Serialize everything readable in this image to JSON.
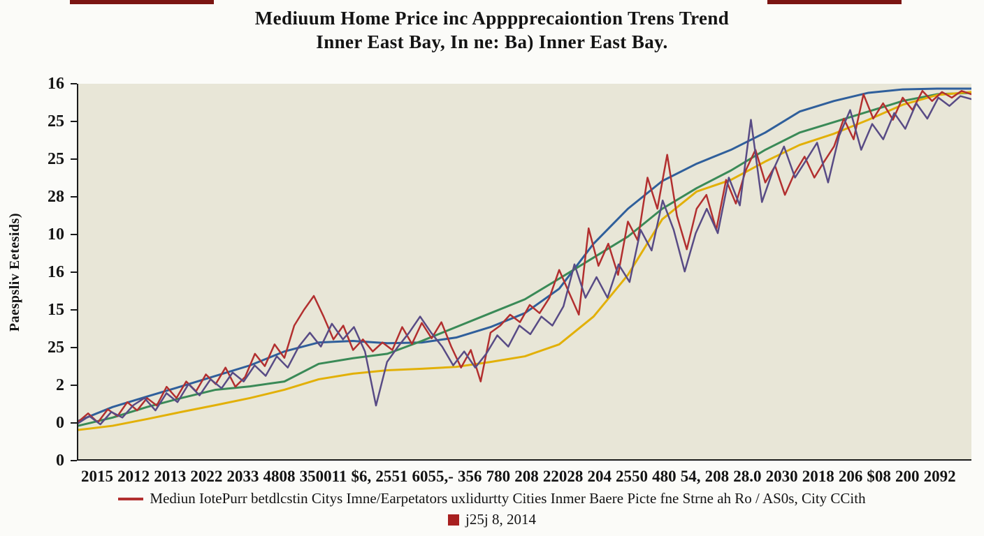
{
  "header": {
    "title_line1": "Mediuum Home Price inc Apppprecaiontion Trens Trend",
    "title_line2": "Inner East Bay, In ne: Ba) Inner East Bay."
  },
  "chart_data": {
    "type": "line",
    "title": "Mediuum Home Price inc Apppprecaiontion Trens Trend",
    "subtitle": "Inner East Bay, In ne: Ba) Inner East Bay.",
    "xlabel": "",
    "ylabel": "Paespsliv Eetesids)",
    "plot_background": "#e8e6d7",
    "grid": false,
    "legend_position": "bottom",
    "ylim": [
      0,
      10
    ],
    "y_tick_labels": [
      "16",
      "25",
      "25",
      "28",
      "10",
      "16",
      "15",
      "25",
      "2",
      "0",
      "0"
    ],
    "x_tick_labels": [
      "2015",
      "2012",
      "2013",
      "2022",
      "2033",
      "4808",
      "350011",
      "$6,",
      "2551",
      "6055,-",
      "356",
      "780",
      "208",
      "22028",
      "204",
      "2550",
      "480",
      "54,",
      "208",
      "28.0",
      "2030",
      "2018",
      "206",
      "$08",
      "200",
      "2092"
    ],
    "series": [
      {
        "name": "blue-smooth",
        "color": "#2f5f9b",
        "stroke_width": 3,
        "values": [
          1.02,
          1.39,
          1.67,
          1.94,
          2.22,
          2.5,
          2.87,
          3.11,
          3.15,
          3.09,
          3.11,
          3.24,
          3.52,
          3.89,
          4.54,
          5.74,
          6.67,
          7.41,
          7.87,
          8.24,
          8.7,
          9.26,
          9.54,
          9.76,
          9.85,
          9.87,
          9.87
        ]
      },
      {
        "name": "green-smooth",
        "color": "#3a8a57",
        "stroke_width": 3,
        "values": [
          0.89,
          1.11,
          1.39,
          1.63,
          1.85,
          1.94,
          2.07,
          2.54,
          2.69,
          2.81,
          3.15,
          3.52,
          3.89,
          4.26,
          4.81,
          5.37,
          5.93,
          6.67,
          7.22,
          7.69,
          8.24,
          8.7,
          8.98,
          9.26,
          9.54,
          9.72,
          9.76
        ]
      },
      {
        "name": "gold-smooth",
        "color": "#e2b007",
        "stroke_width": 3,
        "values": [
          0.78,
          0.89,
          1.07,
          1.26,
          1.44,
          1.63,
          1.85,
          2.13,
          2.28,
          2.37,
          2.41,
          2.46,
          2.59,
          2.74,
          3.06,
          3.8,
          4.91,
          6.39,
          7.13,
          7.44,
          7.93,
          8.37,
          8.67,
          9.04,
          9.44,
          9.7,
          9.78
        ]
      },
      {
        "name": "red-volatile",
        "color": "#b22f2f",
        "stroke_width": 2.5,
        "values": [
          1.0,
          1.22,
          0.98,
          1.33,
          1.15,
          1.52,
          1.3,
          1.63,
          1.43,
          1.93,
          1.63,
          2.07,
          1.81,
          2.26,
          2.0,
          2.44,
          1.93,
          2.19,
          2.81,
          2.48,
          3.06,
          2.7,
          3.56,
          3.98,
          4.35,
          3.8,
          3.19,
          3.56,
          2.91,
          3.19,
          2.87,
          3.11,
          2.91,
          3.52,
          3.07,
          3.63,
          3.22,
          3.65,
          3.0,
          2.44,
          2.91,
          2.07,
          3.37,
          3.56,
          3.85,
          3.65,
          4.11,
          3.89,
          4.3,
          5.04,
          4.44,
          3.85,
          6.15,
          5.15,
          5.74,
          4.91,
          6.33,
          5.83,
          7.5,
          6.67,
          8.11,
          6.48,
          5.59,
          6.67,
          7.04,
          6.11,
          7.44,
          6.81,
          7.69,
          8.24,
          7.37,
          7.81,
          7.04,
          7.63,
          8.06,
          7.5,
          7.93,
          8.33,
          9.07,
          8.52,
          9.72,
          9.07,
          9.48,
          9.04,
          9.63,
          9.3,
          9.81,
          9.54,
          9.78,
          9.63,
          9.81,
          9.72
        ]
      },
      {
        "name": "purple-volatile",
        "color": "#584b85",
        "stroke_width": 2.5,
        "values": [
          0.96,
          1.15,
          0.93,
          1.26,
          1.11,
          1.44,
          1.63,
          1.3,
          1.76,
          1.52,
          2.0,
          1.7,
          2.13,
          1.89,
          2.31,
          2.07,
          2.5,
          2.22,
          2.74,
          2.44,
          3.0,
          3.37,
          3.0,
          3.61,
          3.19,
          3.52,
          2.87,
          1.43,
          2.59,
          3.0,
          3.37,
          3.8,
          3.37,
          3.0,
          2.5,
          2.87,
          2.44,
          2.81,
          3.3,
          3.0,
          3.56,
          3.33,
          3.8,
          3.56,
          4.07,
          5.19,
          4.3,
          4.85,
          4.3,
          5.19,
          4.72,
          6.11,
          5.56,
          6.89,
          6.11,
          5.0,
          6.02,
          6.67,
          6.02,
          7.5,
          6.76,
          9.04,
          6.85,
          7.69,
          8.33,
          7.5,
          7.96,
          8.43,
          7.37,
          8.61,
          9.3,
          8.24,
          8.93,
          8.52,
          9.22,
          8.8,
          9.48,
          9.07,
          9.63,
          9.41,
          9.67,
          9.59
        ]
      }
    ],
    "legend": [
      {
        "swatch": "line",
        "color": "#b22f2f",
        "label": "Mediun IotePurr betdlcstin Citys Imne/Earpetators uxlidurtty Cities Inmer Baere Picte fne Strne ah Ro / AS0s, City CCith"
      },
      {
        "swatch": "square",
        "color": "#a82020",
        "label": "j25j 8, 2014"
      }
    ]
  }
}
